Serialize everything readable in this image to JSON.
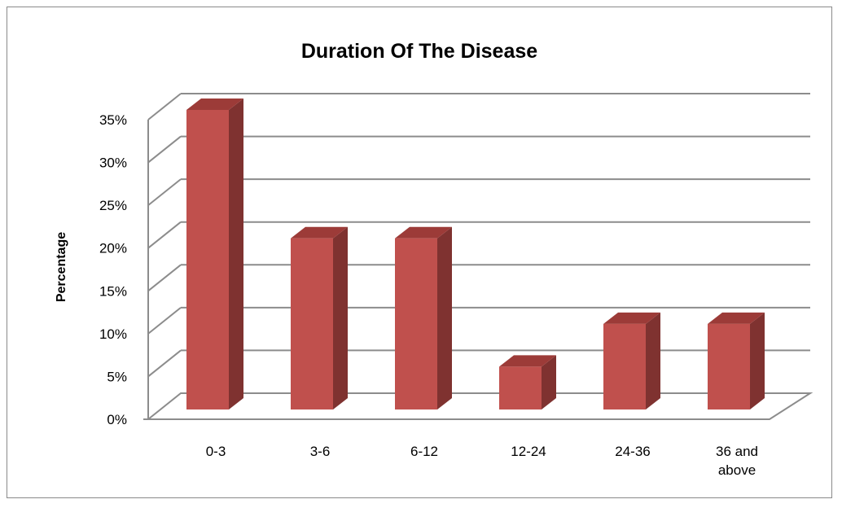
{
  "chart_data": {
    "type": "bar",
    "title": "Duration Of The Disease",
    "xlabel": "",
    "ylabel": "Percentage",
    "categories": [
      "0-3",
      "3-6",
      "6-12",
      "12-24",
      "24-36",
      "36 and above"
    ],
    "values": [
      35,
      20,
      20,
      5,
      10,
      10
    ],
    "ylim": [
      0,
      35
    ],
    "yticks": [
      "0%",
      "5%",
      "10%",
      "15%",
      "20%",
      "25%",
      "30%",
      "35%"
    ],
    "grid": true,
    "legend": "none",
    "bar_color": "#c0504d",
    "bar_side_color": "#7f3230",
    "bar_top_color": "#9c3b38"
  }
}
